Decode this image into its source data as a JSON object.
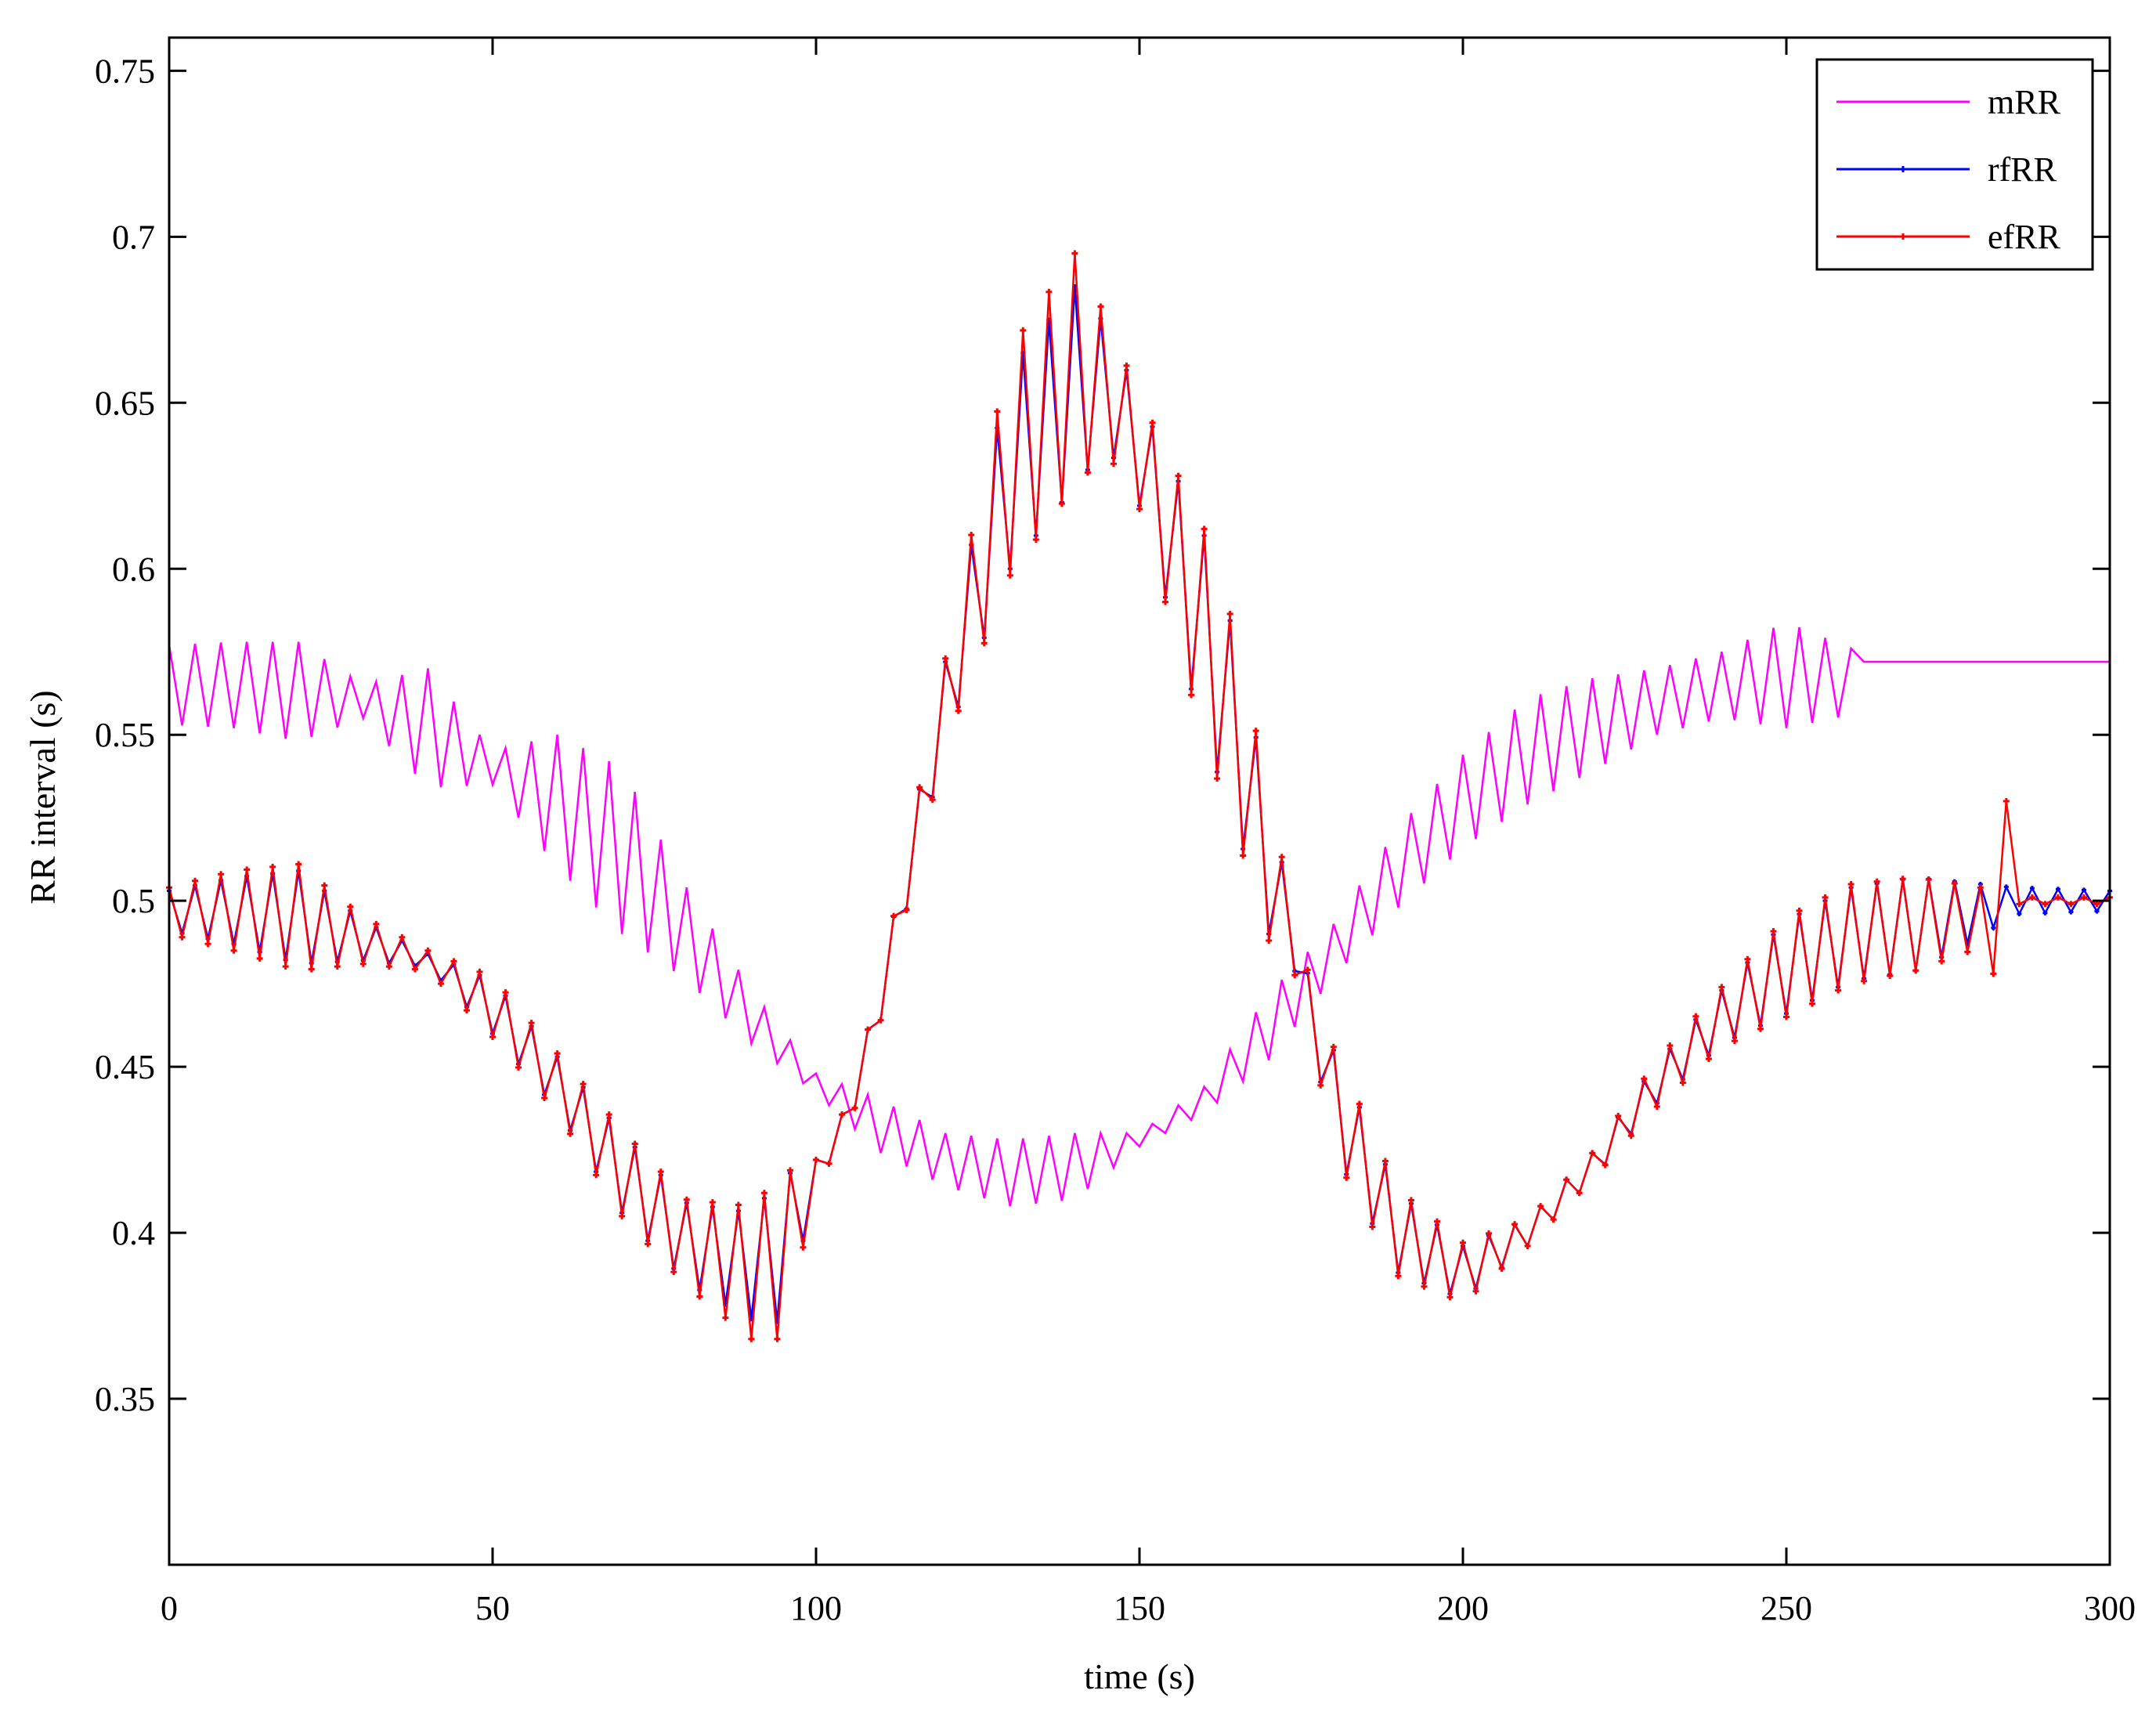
{
  "chart_data": {
    "type": "line",
    "title": "",
    "xlabel": "time (s)",
    "ylabel": "RR interval (s)",
    "xlim": [
      0,
      300
    ],
    "ylim": [
      0.3,
      0.76
    ],
    "xticks": [
      0,
      50,
      100,
      150,
      200,
      250,
      300
    ],
    "yticks": [
      0.35,
      0.4,
      0.45,
      0.5,
      0.55,
      0.6,
      0.65,
      0.7,
      0.75
    ],
    "xtick_labels": [
      "0",
      "50",
      "100",
      "150",
      "200",
      "250",
      "300"
    ],
    "ytick_labels": [
      "0.35",
      "0.4",
      "0.45",
      "0.5",
      "0.55",
      "0.6",
      "0.65",
      "0.7",
      "0.75"
    ],
    "grid": false,
    "legend_position": "top-right",
    "sample_step": 2,
    "series": [
      {
        "name": "mRR",
        "color": "#ff00ff",
        "marker": "none",
        "x_start": 0,
        "x_end": 300,
        "envelope": {
          "t": [
            0,
            10,
            20,
            30,
            40,
            50,
            60,
            70,
            80,
            90,
            100,
            110,
            120,
            130,
            140,
            150,
            160,
            170,
            180,
            190,
            200,
            210,
            220,
            230,
            240,
            250,
            260,
            262,
            300
          ],
          "center": [
            0.565,
            0.565,
            0.563,
            0.56,
            0.552,
            0.54,
            0.53,
            0.515,
            0.49,
            0.465,
            0.445,
            0.432,
            0.422,
            0.418,
            0.42,
            0.428,
            0.44,
            0.462,
            0.485,
            0.51,
            0.53,
            0.545,
            0.553,
            0.56,
            0.565,
            0.568,
            0.566,
            0.572,
            0.572
          ],
          "amplitude": [
            0.012,
            0.013,
            0.015,
            0.005,
            0.018,
            0.005,
            0.02,
            0.025,
            0.014,
            0.008,
            0.003,
            0.008,
            0.008,
            0.01,
            0.01,
            0.002,
            0.004,
            0.01,
            0.008,
            0.012,
            0.014,
            0.016,
            0.014,
            0.01,
            0.01,
            0.016,
            0.01,
            0,
            0
          ]
        }
      },
      {
        "name": "rfRR",
        "color": "#0000ff",
        "marker": "dot",
        "x_start": 0,
        "x_end": 300,
        "envelope": {
          "t": [
            0,
            10,
            20,
            30,
            40,
            50,
            60,
            70,
            80,
            90,
            95,
            100,
            105,
            110,
            120,
            130,
            140,
            145,
            150,
            160,
            165,
            170,
            175,
            180,
            190,
            200,
            210,
            220,
            230,
            240,
            250,
            260,
            270,
            280,
            285,
            300
          ],
          "center": [
            0.497,
            0.497,
            0.495,
            0.488,
            0.482,
            0.468,
            0.445,
            0.418,
            0.397,
            0.39,
            0.395,
            0.418,
            0.435,
            0.47,
            0.56,
            0.63,
            0.655,
            0.655,
            0.635,
            0.58,
            0.55,
            0.51,
            0.48,
            0.44,
            0.4,
            0.388,
            0.4,
            0.42,
            0.445,
            0.465,
            0.48,
            0.49,
            0.493,
            0.497,
            0.5,
            0.5
          ],
          "amplitude": [
            0.006,
            0.01,
            0.014,
            0.006,
            0.002,
            0.008,
            0.008,
            0.012,
            0.012,
            0.016,
            0.022,
            0.004,
            0.004,
            0.006,
            0.012,
            0.03,
            0.03,
            0.018,
            0.016,
            0.03,
            0.028,
            0.02,
            0.004,
            0.015,
            0.012,
            0.008,
            0.004,
            0.004,
            0.006,
            0.008,
            0.014,
            0.014,
            0.014,
            0.008,
            0.004,
            0.003
          ]
        }
      },
      {
        "name": "efRR",
        "color": "#ff0000",
        "marker": "plus",
        "x_start": 0,
        "x_end": 300,
        "envelope": {
          "t": [
            0,
            10,
            20,
            30,
            40,
            50,
            60,
            70,
            80,
            90,
            95,
            100,
            105,
            110,
            120,
            130,
            140,
            145,
            150,
            160,
            165,
            170,
            175,
            180,
            190,
            200,
            210,
            220,
            230,
            240,
            250,
            260,
            270,
            280,
            284,
            285,
            286,
            300
          ],
          "center": [
            0.497,
            0.497,
            0.495,
            0.488,
            0.482,
            0.468,
            0.445,
            0.418,
            0.397,
            0.388,
            0.393,
            0.418,
            0.435,
            0.47,
            0.56,
            0.632,
            0.66,
            0.655,
            0.635,
            0.58,
            0.55,
            0.51,
            0.48,
            0.44,
            0.4,
            0.388,
            0.4,
            0.42,
            0.445,
            0.465,
            0.48,
            0.49,
            0.493,
            0.495,
            0.5,
            0.5,
            0.5,
            0.5
          ],
          "amplitude": [
            0.007,
            0.012,
            0.016,
            0.007,
            0.003,
            0.009,
            0.009,
            0.013,
            0.013,
            0.02,
            0.025,
            0.004,
            0.004,
            0.006,
            0.013,
            0.034,
            0.035,
            0.02,
            0.017,
            0.032,
            0.03,
            0.022,
            0.005,
            0.016,
            0.013,
            0.009,
            0.004,
            0.004,
            0.007,
            0.009,
            0.015,
            0.015,
            0.014,
            0.009,
            0.03,
            0.003,
            0.001,
            0.001
          ]
        }
      }
    ],
    "legend": [
      {
        "label": "mRR",
        "color": "#ff00ff"
      },
      {
        "label": "rfRR",
        "color": "#0000ff"
      },
      {
        "label": "efRR",
        "color": "#ff0000"
      }
    ]
  }
}
